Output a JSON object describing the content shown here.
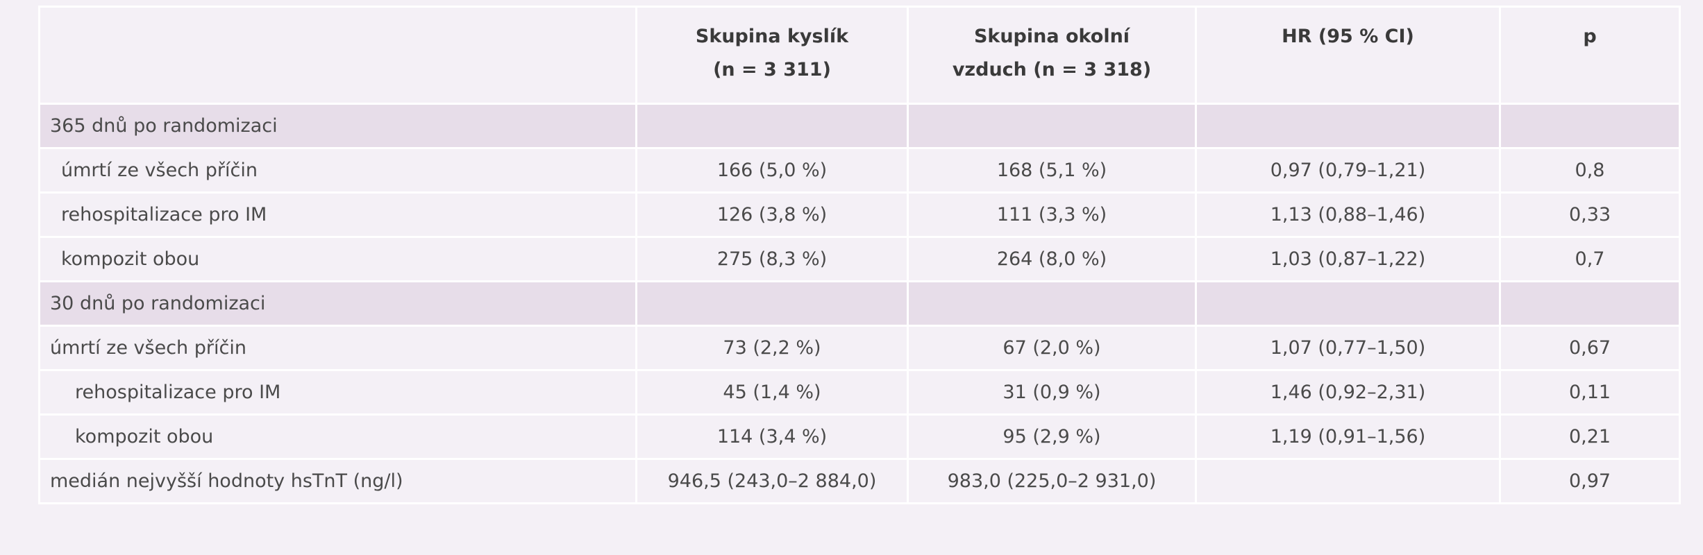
{
  "table": {
    "columns": [
      {
        "lines": [
          "Skupina kyslík",
          "(n = 3 311)"
        ]
      },
      {
        "lines": [
          "Skupina okolní",
          "vzduch (n = 3 318)"
        ]
      },
      {
        "lines": [
          "HR (95 % CI)"
        ]
      },
      {
        "lines": [
          "p"
        ]
      }
    ],
    "rows": [
      {
        "label": "365 dnů po randomizaci",
        "section": true
      },
      {
        "label": "úmrtí ze všech příčin",
        "cells": [
          "166 (5,0 %)",
          "168 (5,1 %)",
          "0,97 (0,79–1,21)",
          "0,8"
        ]
      },
      {
        "label": "rehospitalizace pro IM",
        "cells": [
          "126 (3,8 %)",
          "111 (3,3 %)",
          "1,13 (0,88–1,46)",
          "0,33"
        ]
      },
      {
        "label": "kompozit obou",
        "cells": [
          "275 (8,3 %)",
          "264 (8,0 %)",
          "1,03 (0,87–1,22)",
          "0,7"
        ]
      },
      {
        "label": "30 dnů po randomizaci",
        "section": true
      },
      {
        "label": "úmrtí ze všech příčin",
        "cells": [
          "73 (2,2 %)",
          "67 (2,0 %)",
          "1,07 (0,77–1,50)",
          "0,67"
        ]
      },
      {
        "label": "rehospitalizace pro IM",
        "cells": [
          "45 (1,4 %)",
          "31 (0,9 %)",
          "1,46 (0,92–2,31)",
          "0,11"
        ]
      },
      {
        "label": "kompozit obou",
        "cells": [
          "114 (3,4 %)",
          "95 (2,9 %)",
          "1,19 (0,91–1,56)",
          "0,21"
        ]
      },
      {
        "label": "medián nejvyšší hodnoty hsTnT (ng/l)",
        "cells": [
          "946,5 (243,0–2 884,0)",
          "983,0 (225,0–2 931,0)",
          null,
          "0,97"
        ]
      }
    ]
  }
}
